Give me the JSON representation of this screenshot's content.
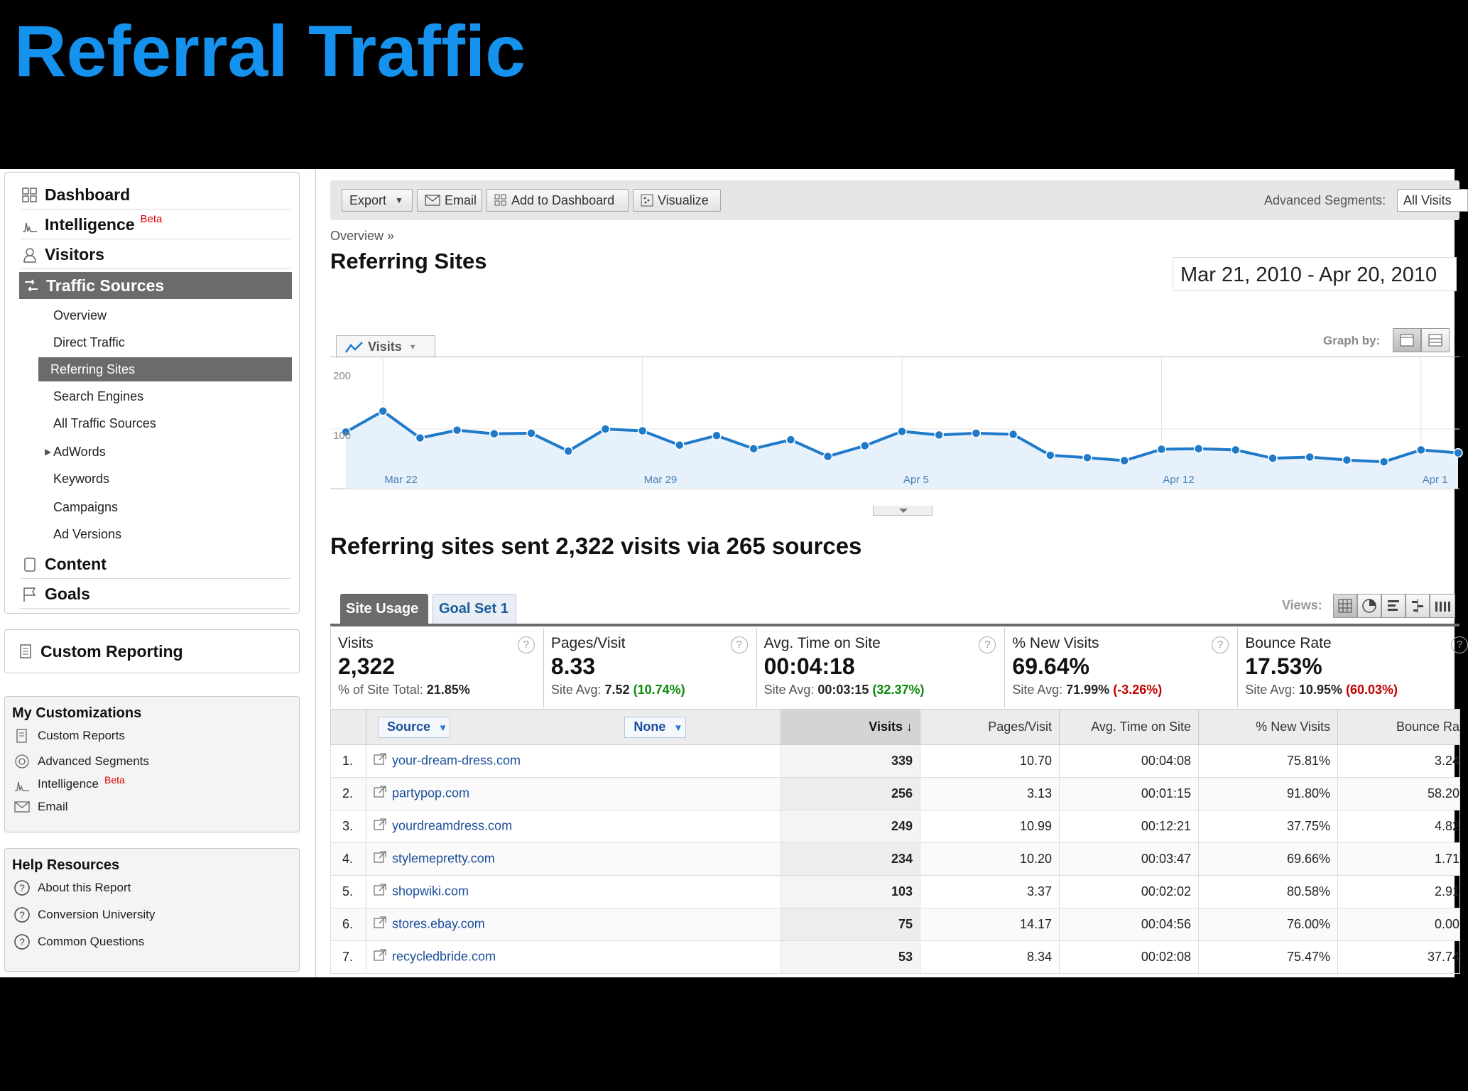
{
  "slide_title": "Referral Traffic",
  "nav": {
    "dashboard": "Dashboard",
    "intelligence": "Intelligence",
    "beta": "Beta",
    "visitors": "Visitors",
    "traffic_sources": "Traffic Sources",
    "sub": [
      "Overview",
      "Direct Traffic",
      "Referring Sites",
      "Search Engines",
      "All Traffic Sources",
      "AdWords",
      "Keywords",
      "Campaigns",
      "Ad Versions"
    ],
    "content": "Content",
    "goals": "Goals"
  },
  "custom_reporting": "Custom Reporting",
  "my_customizations": {
    "title": "My Customizations",
    "items": [
      "Custom Reports",
      "Advanced Segments",
      "Intelligence",
      "Email"
    ],
    "beta": "Beta"
  },
  "help_resources": {
    "title": "Help Resources",
    "items": [
      "About this Report",
      "Conversion University",
      "Common Questions"
    ]
  },
  "toolbar": {
    "export": "Export",
    "email": "Email",
    "add_dashboard": "Add to Dashboard",
    "visualize": "Visualize",
    "advanced_segments_label": "Advanced Segments:",
    "advanced_segments_value": "All Visits"
  },
  "breadcrumb": "Overview »",
  "report_title": "Referring Sites",
  "date_range": "Mar 21, 2010 - Apr 20, 2010",
  "graph": {
    "metric_label": "Visits",
    "graph_by_label": "Graph by:"
  },
  "chart_data": {
    "type": "line",
    "ylim": [
      0,
      200
    ],
    "yticks": [
      "200",
      "100"
    ],
    "xticks": [
      "Mar 22",
      "Mar 29",
      "Apr 5",
      "Apr 12",
      "Apr 1"
    ],
    "series": [
      {
        "values": [
          95,
          130,
          85,
          98,
          92,
          93,
          63,
          100,
          97,
          73,
          89,
          67,
          82,
          54,
          72,
          96,
          90,
          93,
          91,
          56,
          52,
          47,
          66,
          67,
          65,
          51,
          53,
          48,
          45,
          65,
          60
        ]
      }
    ]
  },
  "summary": "Referring sites sent 2,322 visits via 265 sources",
  "tabs": {
    "site_usage": "Site Usage",
    "goal_set": "Goal Set 1",
    "views_label": "Views:"
  },
  "metrics": [
    {
      "label": "Visits",
      "value": "2,322",
      "sub_prefix": "% of Site Total: ",
      "sub_value": "21.85%",
      "delta": "",
      "delta_class": ""
    },
    {
      "label": "Pages/Visit",
      "value": "8.33",
      "sub_prefix": "Site Avg: ",
      "sub_value": "7.52",
      "delta": "(10.74%)",
      "delta_class": "pos"
    },
    {
      "label": "Avg. Time on Site",
      "value": "00:04:18",
      "sub_prefix": "Site Avg: ",
      "sub_value": "00:03:15",
      "delta": "(32.37%)",
      "delta_class": "pos"
    },
    {
      "label": "% New Visits",
      "value": "69.64%",
      "sub_prefix": "Site Avg: ",
      "sub_value": "71.99%",
      "delta": "(-3.26%)",
      "delta_class": "neg"
    },
    {
      "label": "Bounce Rate",
      "value": "17.53%",
      "sub_prefix": "Site Avg: ",
      "sub_value": "10.95%",
      "delta": "(60.03%)",
      "delta_class": "neg"
    }
  ],
  "table": {
    "source_select": "Source",
    "none_select": "None",
    "headers": [
      "Visits",
      "Pages/Visit",
      "Avg. Time on Site",
      "% New Visits",
      "Bounce Ra"
    ],
    "rows": [
      {
        "n": "1.",
        "source": "your-dream-dress.com",
        "visits": "339",
        "ppv": "10.70",
        "time": "00:04:08",
        "newv": "75.81%",
        "bounce": "3.24"
      },
      {
        "n": "2.",
        "source": "partypop.com",
        "visits": "256",
        "ppv": "3.13",
        "time": "00:01:15",
        "newv": "91.80%",
        "bounce": "58.20"
      },
      {
        "n": "3.",
        "source": "yourdreamdress.com",
        "visits": "249",
        "ppv": "10.99",
        "time": "00:12:21",
        "newv": "37.75%",
        "bounce": "4.82"
      },
      {
        "n": "4.",
        "source": "stylemepretty.com",
        "visits": "234",
        "ppv": "10.20",
        "time": "00:03:47",
        "newv": "69.66%",
        "bounce": "1.71"
      },
      {
        "n": "5.",
        "source": "shopwiki.com",
        "visits": "103",
        "ppv": "3.37",
        "time": "00:02:02",
        "newv": "80.58%",
        "bounce": "2.91"
      },
      {
        "n": "6.",
        "source": "stores.ebay.com",
        "visits": "75",
        "ppv": "14.17",
        "time": "00:04:56",
        "newv": "76.00%",
        "bounce": "0.00"
      },
      {
        "n": "7.",
        "source": "recycledbride.com",
        "visits": "53",
        "ppv": "8.34",
        "time": "00:02:08",
        "newv": "75.47%",
        "bounce": "37.74"
      }
    ]
  }
}
